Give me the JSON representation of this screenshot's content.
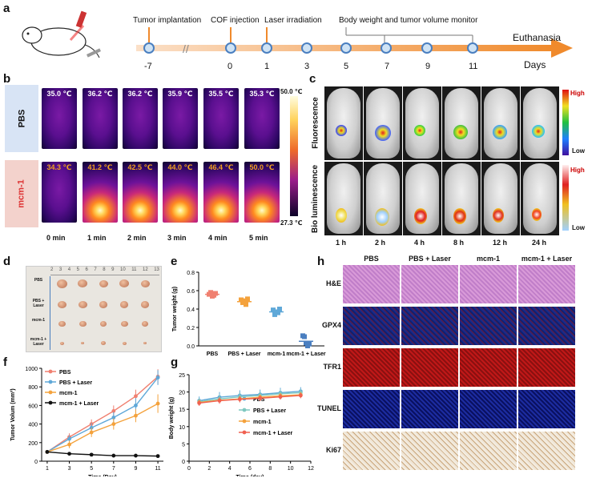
{
  "panels": {
    "a": "a",
    "b": "b",
    "c": "c",
    "d": "d",
    "e": "e",
    "f": "f",
    "g": "g",
    "h": "h"
  },
  "timeline": {
    "events": [
      "Tumor implantation",
      "COF injection",
      "Laser irradiation",
      "Body weight and tumor volume monitor"
    ],
    "days": [
      "-7",
      "0",
      "1",
      "3",
      "5",
      "7",
      "9",
      "11"
    ],
    "end_label": "Euthanasia",
    "axis_label": "Days"
  },
  "thermal": {
    "rows": [
      "PBS",
      "mcm-1"
    ],
    "pbs_temps": [
      "35.0 ℃",
      "36.2 ℃",
      "36.2 ℃",
      "35.9 ℃",
      "35.5 ℃",
      "35.3 ℃"
    ],
    "mcm_temps": [
      "34.3 ℃",
      "41.2 ℃",
      "42.5 ℃",
      "44.0 ℃",
      "46.4 ℃",
      "50.0 ℃"
    ],
    "times": [
      "0 min",
      "1 min",
      "2 min",
      "3 min",
      "4 min",
      "5 min"
    ],
    "scale_max": "50.0 ℃",
    "scale_min": "27.3 ℃"
  },
  "imaging": {
    "rows": [
      "Fluorescence",
      "Bio luminescence"
    ],
    "times": [
      "1 h",
      "2 h",
      "4 h",
      "8 h",
      "12 h",
      "24 h"
    ],
    "scale_high": "High",
    "scale_low": "Low"
  },
  "tumor_photo": {
    "rows": [
      "PBS",
      "PBS + Laser",
      "mcm-1",
      "mcm-1 + Laser"
    ],
    "ruler": [
      "2",
      "3",
      "4",
      "5",
      "6",
      "7",
      "8",
      "9",
      "10",
      "11",
      "12",
      "13"
    ]
  },
  "chart_data": [
    {
      "id": "e",
      "type": "scatter",
      "ylabel": "Tumor weight (g)",
      "categories": [
        "PBS",
        "PBS + Laser",
        "mcm-1",
        "mcm-1 + Laser"
      ],
      "yticks": [
        "0.0",
        "0.2",
        "0.4",
        "0.6",
        "0.8"
      ],
      "ylim": [
        0,
        0.8
      ],
      "series": [
        {
          "name": "PBS",
          "color": "#f08070",
          "points": [
            0.56,
            0.58,
            0.54,
            0.55,
            0.57
          ],
          "mean": 0.56
        },
        {
          "name": "PBS + Laser",
          "color": "#f4a23c",
          "points": [
            0.5,
            0.47,
            0.49,
            0.45,
            0.51
          ],
          "mean": 0.48
        },
        {
          "name": "mcm-1",
          "color": "#5fa8d8",
          "points": [
            0.39,
            0.34,
            0.37,
            0.36,
            0.4
          ],
          "mean": 0.37
        },
        {
          "name": "mcm-1 + Laser",
          "color": "#4a7fc0",
          "points": [
            0.11,
            0.1,
            0.03,
            0.0,
            0.02
          ],
          "mean": 0.05
        }
      ]
    },
    {
      "id": "f",
      "type": "line",
      "xlabel": "Time (Day)",
      "ylabel": "Tumor Volum (mm³)",
      "x": [
        1,
        3,
        5,
        7,
        9,
        11
      ],
      "xticks": [
        "1",
        "3",
        "5",
        "7",
        "9",
        "11"
      ],
      "yticks": [
        "0",
        "200",
        "400",
        "600",
        "800",
        "1000"
      ],
      "ylim": [
        0,
        1000
      ],
      "series": [
        {
          "name": "PBS",
          "color": "#f08070",
          "values": [
            100,
            260,
            400,
            540,
            700,
            910
          ],
          "err": [
            10,
            40,
            50,
            60,
            70,
            80
          ]
        },
        {
          "name": "PBS + Laser",
          "color": "#5fa8d8",
          "values": [
            100,
            240,
            360,
            470,
            600,
            900
          ],
          "err": [
            10,
            40,
            50,
            60,
            80,
            80
          ]
        },
        {
          "name": "mcm-1",
          "color": "#f4a23c",
          "values": [
            100,
            180,
            310,
            400,
            490,
            620
          ],
          "err": [
            10,
            40,
            50,
            60,
            70,
            100
          ]
        },
        {
          "name": "mcm-1 + Laser",
          "color": "#111111",
          "values": [
            100,
            80,
            70,
            60,
            60,
            55
          ],
          "err": [
            5,
            5,
            5,
            5,
            5,
            5
          ]
        }
      ]
    },
    {
      "id": "g",
      "type": "line",
      "xlabel": "Time (day)",
      "ylabel": "Body weight (g)",
      "x": [
        1,
        3,
        5,
        7,
        9,
        11
      ],
      "xticks": [
        "0",
        "2",
        "4",
        "6",
        "8",
        "10",
        "12"
      ],
      "yticks": [
        "0",
        "5",
        "10",
        "15",
        "20",
        "25"
      ],
      "xlim": [
        0,
        12
      ],
      "ylim": [
        0,
        25
      ],
      "series": [
        {
          "name": "PBS",
          "color": "#5fa8d8",
          "values": [
            17.5,
            18.5,
            19.0,
            19.3,
            19.8,
            20.2
          ],
          "err": [
            1.2,
            1.5,
            1.5,
            1.4,
            1.4,
            1.2
          ]
        },
        {
          "name": "PBS + Laser",
          "color": "#7fc8c0",
          "values": [
            17.2,
            18.0,
            18.6,
            19.0,
            19.5,
            19.8
          ],
          "err": [
            1.0,
            1.3,
            1.3,
            1.2,
            1.2,
            1.0
          ]
        },
        {
          "name": "mcm-1",
          "color": "#f4a23c",
          "values": [
            17.0,
            17.6,
            18.0,
            18.5,
            18.9,
            19.2
          ],
          "err": [
            0.8,
            0.9,
            0.9,
            0.8,
            0.8,
            0.8
          ]
        },
        {
          "name": "mcm-1 + Laser",
          "color": "#f06050",
          "values": [
            16.8,
            17.5,
            17.9,
            18.2,
            18.6,
            19.0
          ],
          "err": [
            0.8,
            0.9,
            0.9,
            0.8,
            0.8,
            0.8
          ]
        }
      ]
    }
  ],
  "histology": {
    "cols": [
      "PBS",
      "PBS + Laser",
      "mcm-1",
      "mcm-1 + Laser"
    ],
    "rows": [
      "H&E",
      "GPX4",
      "TFR1",
      "TUNEL",
      "Ki67"
    ]
  }
}
